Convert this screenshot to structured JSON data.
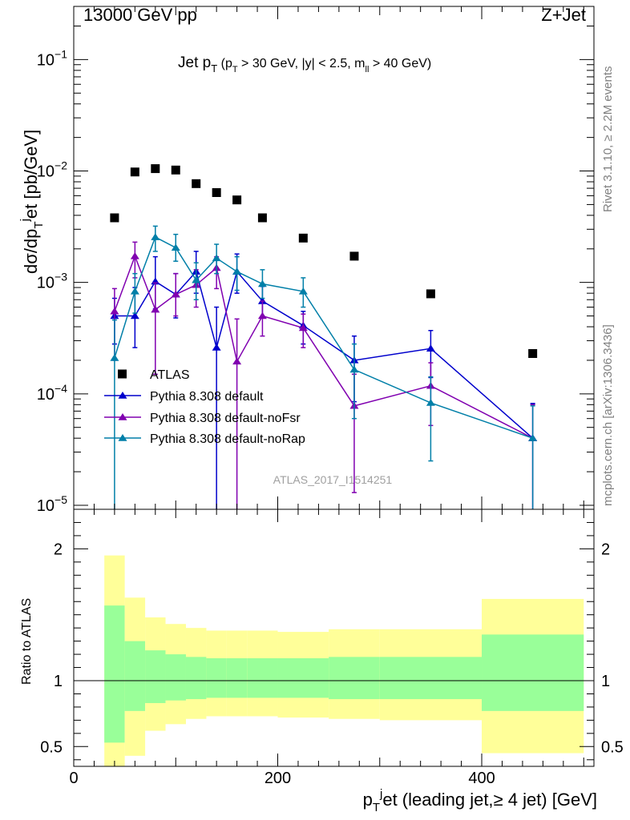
{
  "header": {
    "left": "13000 GeV pp",
    "right": "Z+Jet"
  },
  "side_labels": {
    "rivet": "Rivet 3.1.10, ≥ 2.2M events",
    "mcplots": "mcplots.cern.ch [arXiv:1306.3436]"
  },
  "watermark": "ATLAS_2017_I1514251",
  "plot_title": {
    "main": "Jet p",
    "main_sub": "T",
    "cond_open": "(p",
    "cond_sub": "T",
    "cond_mid": " > 30 GeV, |y| < 2.5, m",
    "cond_sub2": "ll",
    "cond_close": " > 40 GeV)"
  },
  "y_axis_label": {
    "a": "dσ/dp",
    "sub": "T",
    "sup": "j",
    "b": "et [pb/GeV]"
  },
  "ratio_axis_label": "Ratio to ATLAS",
  "x_axis_label": {
    "a": "p",
    "sub": "T",
    "sup": "j",
    "b": "et (leading jet,≥ 4 jet) [GeV]"
  },
  "chart_data": {
    "type": "scatter",
    "x_range": [
      0,
      510
    ],
    "y_range": [
      9.2e-06,
      0.3
    ],
    "y_scale": "log",
    "ratio_range": [
      0.35,
      2.3
    ],
    "x_ticks": [
      {
        "v": 0,
        "label": "0"
      },
      {
        "v": 200,
        "label": "200"
      },
      {
        "v": 400,
        "label": "400"
      }
    ],
    "y_ticks": [
      {
        "v": 0.1,
        "m": "10",
        "e": "−1"
      },
      {
        "v": 0.01,
        "m": "10",
        "e": "−2"
      },
      {
        "v": 0.001,
        "m": "10",
        "e": "−3"
      },
      {
        "v": 0.0001,
        "m": "10",
        "e": "−4"
      },
      {
        "v": 1e-05,
        "m": "10",
        "e": "−5"
      }
    ],
    "ratio_ticks": [
      {
        "v": 0.5,
        "label": "0.5"
      },
      {
        "v": 1,
        "label": "1"
      },
      {
        "v": 2,
        "label": "2"
      }
    ],
    "bins": [
      {
        "lo": 30,
        "hi": 50
      },
      {
        "lo": 50,
        "hi": 70
      },
      {
        "lo": 70,
        "hi": 90
      },
      {
        "lo": 90,
        "hi": 110
      },
      {
        "lo": 110,
        "hi": 130
      },
      {
        "lo": 130,
        "hi": 150
      },
      {
        "lo": 150,
        "hi": 170
      },
      {
        "lo": 170,
        "hi": 200
      },
      {
        "lo": 200,
        "hi": 250
      },
      {
        "lo": 250,
        "hi": 300
      },
      {
        "lo": 300,
        "hi": 400
      },
      {
        "lo": 400,
        "hi": 500
      }
    ],
    "bands": {
      "inner": [
        [
          0.53,
          1.57
        ],
        [
          0.77,
          1.3
        ],
        [
          0.83,
          1.23
        ],
        [
          0.85,
          1.2
        ],
        [
          0.86,
          1.18
        ],
        [
          0.87,
          1.17
        ],
        [
          0.87,
          1.17
        ],
        [
          0.87,
          1.17
        ],
        [
          0.87,
          1.17
        ],
        [
          0.86,
          1.18
        ],
        [
          0.86,
          1.18
        ],
        [
          0.77,
          1.35
        ]
      ],
      "outer": [
        [
          0.33,
          1.95
        ],
        [
          0.43,
          1.63
        ],
        [
          0.62,
          1.48
        ],
        [
          0.67,
          1.43
        ],
        [
          0.71,
          1.4
        ],
        [
          0.73,
          1.38
        ],
        [
          0.73,
          1.38
        ],
        [
          0.73,
          1.38
        ],
        [
          0.72,
          1.37
        ],
        [
          0.71,
          1.39
        ],
        [
          0.7,
          1.39
        ],
        [
          0.45,
          1.62
        ]
      ],
      "inner_color": "#99ff99",
      "outer_color": "#ffff99"
    },
    "series": [
      {
        "name": "ATLAS",
        "color": "#000000",
        "marker": "square",
        "points": [
          {
            "x": 40,
            "y": 0.0038
          },
          {
            "x": 60,
            "y": 0.0098
          },
          {
            "x": 80,
            "y": 0.0105
          },
          {
            "x": 100,
            "y": 0.0102
          },
          {
            "x": 120,
            "y": 0.0077
          },
          {
            "x": 140,
            "y": 0.0064
          },
          {
            "x": 160,
            "y": 0.0055
          },
          {
            "x": 185,
            "y": 0.0038
          },
          {
            "x": 225,
            "y": 0.0025
          },
          {
            "x": 275,
            "y": 0.00172
          },
          {
            "x": 350,
            "y": 0.00079
          },
          {
            "x": 450,
            "y": 0.00023
          }
        ]
      },
      {
        "name": "Pythia 8.308 default",
        "color": "#0000cc",
        "marker": "triangle",
        "points": [
          {
            "x": 40,
            "y": 0.0005,
            "lo": 0.00028,
            "hi": 0.00072
          },
          {
            "x": 60,
            "y": 0.0005,
            "lo": 0.00026,
            "hi": 0.0009
          },
          {
            "x": 80,
            "y": 0.00102,
            "lo": 0.00058,
            "hi": 0.0017
          },
          {
            "x": 100,
            "y": 0.00078,
            "lo": 0.00048,
            "hi": 0.0012
          },
          {
            "x": 120,
            "y": 0.00125,
            "lo": 0.0008,
            "hi": 0.0019
          },
          {
            "x": 140,
            "y": 0.00026,
            "lo": 5e-06,
            "hi": 0.0006
          },
          {
            "x": 160,
            "y": 0.00125,
            "lo": 0.0008,
            "hi": 0.0018
          },
          {
            "x": 185,
            "y": 0.00068,
            "lo": 0.00048,
            "hi": 0.00092
          },
          {
            "x": 225,
            "y": 0.00041,
            "lo": 0.00028,
            "hi": 0.00055
          },
          {
            "x": 275,
            "y": 0.0002,
            "lo": 8.5e-05,
            "hi": 0.00033
          },
          {
            "x": 350,
            "y": 0.000255,
            "lo": 0.00014,
            "hi": 0.00037
          },
          {
            "x": 450,
            "y": 4e-05,
            "lo": 5e-06,
            "hi": 8.2e-05
          }
        ]
      },
      {
        "name": "Pythia 8.308 default-noFsr",
        "color": "#8000b0",
        "marker": "triangle",
        "points": [
          {
            "x": 40,
            "y": 0.00055,
            "lo": 0.0002,
            "hi": 0.00088
          },
          {
            "x": 60,
            "y": 0.00172,
            "lo": 0.0011,
            "hi": 0.0023
          },
          {
            "x": 80,
            "y": 0.00057,
            "lo": 0.00015,
            "hi": 0.00099
          },
          {
            "x": 100,
            "y": 0.00078,
            "lo": 0.0005,
            "hi": 0.0012
          },
          {
            "x": 120,
            "y": 0.00095,
            "lo": 0.0006,
            "hi": 0.0013
          },
          {
            "x": 140,
            "y": 0.00135,
            "lo": 0.00088,
            "hi": 0.0017
          },
          {
            "x": 160,
            "y": 0.000195,
            "lo": 5e-06,
            "hi": 0.00047
          },
          {
            "x": 185,
            "y": 0.0005,
            "lo": 0.00033,
            "hi": 0.00068
          },
          {
            "x": 225,
            "y": 0.00039,
            "lo": 0.00026,
            "hi": 0.00052
          },
          {
            "x": 275,
            "y": 7.8e-05,
            "lo": 1.3e-05,
            "hi": 0.00015
          },
          {
            "x": 350,
            "y": 0.000118,
            "lo": 5.2e-05,
            "hi": 0.00019
          },
          {
            "x": 450,
            "y": 4e-05,
            "lo": 5e-06,
            "hi": 8e-05
          }
        ]
      },
      {
        "name": "Pythia 8.308 default-noRap",
        "color": "#007fa8",
        "marker": "triangle",
        "points": [
          {
            "x": 40,
            "y": 0.00021,
            "lo": 5e-06,
            "hi": 0.00046
          },
          {
            "x": 60,
            "y": 0.00083,
            "lo": 0.00053,
            "hi": 0.0012
          },
          {
            "x": 80,
            "y": 0.00255,
            "lo": 0.0019,
            "hi": 0.0032
          },
          {
            "x": 100,
            "y": 0.00205,
            "lo": 0.00155,
            "hi": 0.0027
          },
          {
            "x": 120,
            "y": 0.00105,
            "lo": 0.0007,
            "hi": 0.0015
          },
          {
            "x": 140,
            "y": 0.00165,
            "lo": 0.0012,
            "hi": 0.0022
          },
          {
            "x": 160,
            "y": 0.00125,
            "lo": 0.00085,
            "hi": 0.0017
          },
          {
            "x": 185,
            "y": 0.00097,
            "lo": 0.00072,
            "hi": 0.0013
          },
          {
            "x": 225,
            "y": 0.00083,
            "lo": 0.0006,
            "hi": 0.0011
          },
          {
            "x": 275,
            "y": 0.000165,
            "lo": 6e-05,
            "hi": 0.00028
          },
          {
            "x": 350,
            "y": 8.3e-05,
            "lo": 2.5e-05,
            "hi": 0.000142
          },
          {
            "x": 450,
            "y": 4e-05,
            "lo": 5e-06,
            "hi": 7.8e-05
          }
        ]
      }
    ],
    "legend_placement": "lower-left"
  }
}
